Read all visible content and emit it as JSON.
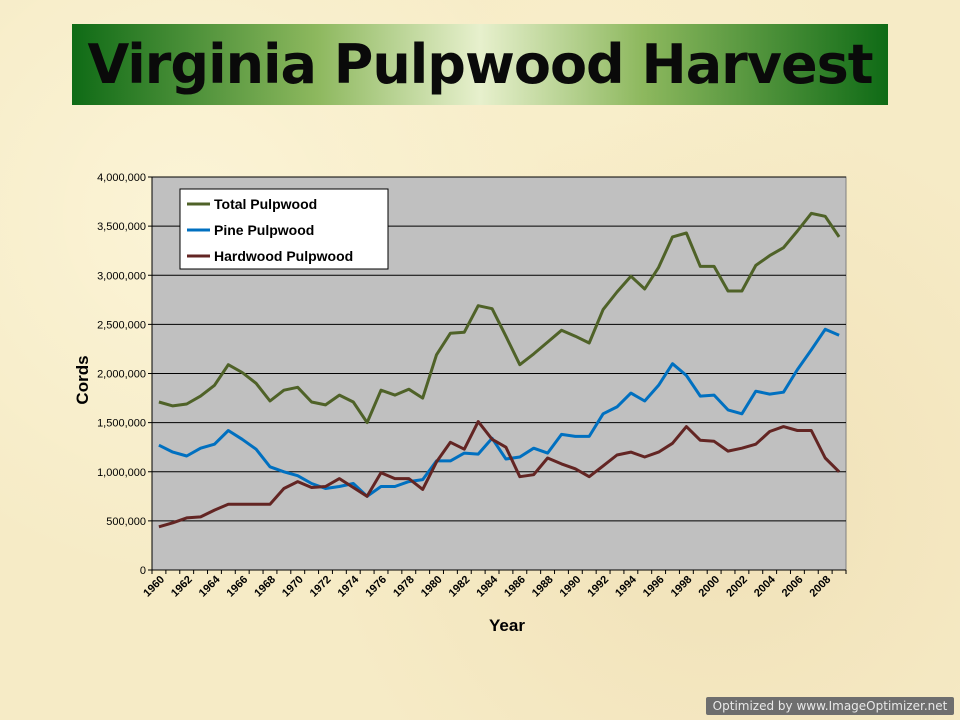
{
  "title": "Virginia Pulpwood Harvest",
  "watermark": "Optimized by www.ImageOptimizer.net",
  "chart_data": {
    "type": "line",
    "xlabel": "Year",
    "ylabel": "Cords",
    "ylim": [
      0,
      4000000
    ],
    "ytick_step": 500000,
    "ytick_labels": [
      "0",
      "500,000",
      "1,000,000",
      "1,500,000",
      "2,000,000",
      "2,500,000",
      "3,000,000",
      "3,500,000",
      "4,000,000"
    ],
    "xtick_labels": [
      "1960",
      "1962",
      "1964",
      "1966",
      "1968",
      "1970",
      "1972",
      "1974",
      "1976",
      "1978",
      "1980",
      "1982",
      "1984",
      "1986",
      "1988",
      "1990",
      "1992",
      "1994",
      "1996",
      "1998",
      "2000",
      "2002",
      "2004",
      "2006",
      "2008"
    ],
    "grid": true,
    "legend_position": "top-left",
    "x": [
      1960,
      1961,
      1962,
      1963,
      1964,
      1965,
      1966,
      1967,
      1968,
      1969,
      1970,
      1971,
      1972,
      1973,
      1974,
      1975,
      1976,
      1977,
      1978,
      1979,
      1980,
      1981,
      1982,
      1983,
      1984,
      1985,
      1986,
      1987,
      1988,
      1989,
      1990,
      1991,
      1992,
      1993,
      1994,
      1995,
      1996,
      1997,
      1998,
      1999,
      2000,
      2001,
      2002,
      2003,
      2004,
      2005,
      2006,
      2007,
      2008,
      2009
    ],
    "series": [
      {
        "name": "Total Pulpwood",
        "color": "#4f6228",
        "values": [
          1710000,
          1670000,
          1690000,
          1770000,
          1880000,
          2090000,
          2010000,
          1900000,
          1720000,
          1830000,
          1860000,
          1710000,
          1680000,
          1780000,
          1710000,
          1500000,
          1830000,
          1780000,
          1840000,
          1750000,
          2190000,
          2410000,
          2420000,
          2690000,
          2660000,
          2380000,
          2090000,
          2200000,
          2320000,
          2440000,
          2380000,
          2310000,
          2650000,
          2830000,
          2990000,
          2860000,
          3080000,
          3390000,
          3430000,
          3090000,
          3090000,
          2840000,
          2840000,
          3100000,
          3200000,
          3280000,
          3450000,
          3630000,
          3600000,
          3390000
        ]
      },
      {
        "name": "Pine Pulpwood",
        "color": "#0070c0",
        "values": [
          1270000,
          1200000,
          1160000,
          1240000,
          1280000,
          1420000,
          1330000,
          1230000,
          1050000,
          1000000,
          960000,
          880000,
          830000,
          850000,
          880000,
          750000,
          850000,
          850000,
          900000,
          920000,
          1110000,
          1110000,
          1190000,
          1180000,
          1340000,
          1130000,
          1150000,
          1240000,
          1190000,
          1380000,
          1360000,
          1360000,
          1590000,
          1660000,
          1800000,
          1720000,
          1880000,
          2100000,
          1980000,
          1770000,
          1780000,
          1630000,
          1590000,
          1820000,
          1790000,
          1810000,
          2040000,
          2240000,
          2450000,
          2390000
        ]
      },
      {
        "name": "Hardwood Pulpwood",
        "color": "#632523",
        "values": [
          440000,
          480000,
          530000,
          540000,
          610000,
          670000,
          670000,
          670000,
          670000,
          830000,
          900000,
          840000,
          850000,
          930000,
          840000,
          750000,
          990000,
          930000,
          930000,
          820000,
          1100000,
          1300000,
          1230000,
          1510000,
          1330000,
          1250000,
          950000,
          970000,
          1140000,
          1080000,
          1030000,
          950000,
          1060000,
          1170000,
          1200000,
          1150000,
          1200000,
          1290000,
          1460000,
          1320000,
          1310000,
          1210000,
          1240000,
          1280000,
          1410000,
          1460000,
          1420000,
          1420000,
          1140000,
          1000000
        ]
      }
    ]
  }
}
